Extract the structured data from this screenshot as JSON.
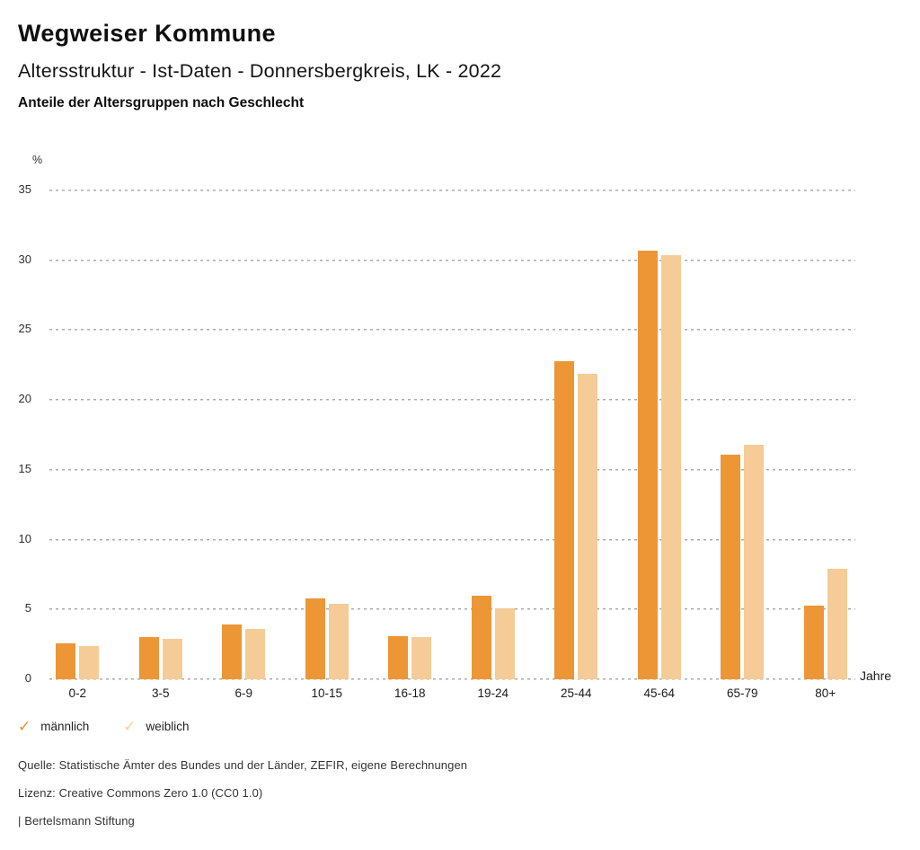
{
  "header": {
    "title": "Wegweiser Kommune",
    "subtitle": "Altersstruktur - Ist-Daten - Donnersbergkreis, LK - 2022",
    "heading": "Anteile der Altersgruppen nach Geschlecht"
  },
  "chart_data": {
    "type": "bar",
    "title": "Anteile der Altersgruppen nach Geschlecht",
    "ylabel": "%",
    "xlabel": "Jahre",
    "ylim": [
      0,
      35
    ],
    "yticks": [
      35,
      30,
      25,
      20,
      15,
      10,
      5,
      0
    ],
    "grid": "horizontal dotted",
    "legend_position": "bottom-left",
    "categories": [
      "0-2",
      "3-5",
      "6-9",
      "10-15",
      "16-18",
      "19-24",
      "25-44",
      "45-64",
      "65-79",
      "80+"
    ],
    "series": [
      {
        "name": "männlich",
        "color": "#EC9636",
        "values": [
          2.6,
          3.0,
          3.9,
          5.8,
          3.1,
          6.0,
          22.8,
          30.7,
          16.1,
          5.3
        ]
      },
      {
        "name": "weiblich",
        "color": "#F5CB97",
        "values": [
          2.4,
          2.9,
          3.6,
          5.4,
          3.0,
          5.1,
          21.9,
          30.4,
          16.8,
          7.9
        ]
      }
    ]
  },
  "legend": {
    "check_glyph": "✓",
    "items": [
      {
        "label": "männlich",
        "color": "#E8912D"
      },
      {
        "label": "weiblich",
        "color": "#F7D0A1"
      }
    ]
  },
  "footer": {
    "source": "Quelle: Statistische Ämter des Bundes und der Länder, ZEFIR, eigene Berechnungen",
    "license": "Lizenz: Creative Commons Zero 1.0 (CC0 1.0)",
    "attribution": "| Bertelsmann Stiftung"
  }
}
